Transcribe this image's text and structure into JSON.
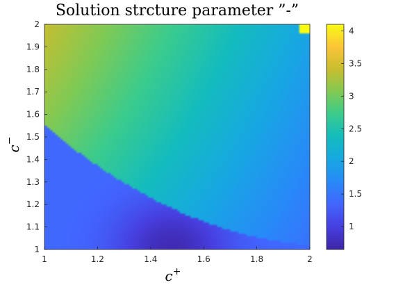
{
  "chart_data": {
    "type": "heatmap",
    "title": "Solution strcture parameter ”-”",
    "xlabel": {
      "base": "c",
      "sup": "+"
    },
    "ylabel": {
      "base": "c",
      "sup": "−"
    },
    "xlim": [
      1,
      2
    ],
    "ylim": [
      1,
      2
    ],
    "x_ticks": [
      "1",
      "1.2",
      "1.4",
      "1.6",
      "1.8",
      "2"
    ],
    "y_ticks": [
      "1",
      "1.1",
      "1.2",
      "1.3",
      "1.4",
      "1.5",
      "1.6",
      "1.7",
      "1.8",
      "1.9",
      "2"
    ],
    "colormap": "parula",
    "clim": [
      0.65,
      4.1
    ],
    "colorbar_ticks": [
      "1",
      "1.5",
      "2",
      "2.5",
      "3",
      "3.5",
      "4"
    ],
    "regions": [
      {
        "name": "lower-left",
        "value_range": [
          0.7,
          1.4
        ]
      },
      {
        "name": "upper",
        "value_range": [
          1.9,
          3.5
        ]
      },
      {
        "name": "top-right-corner",
        "value": 4.1
      }
    ]
  }
}
